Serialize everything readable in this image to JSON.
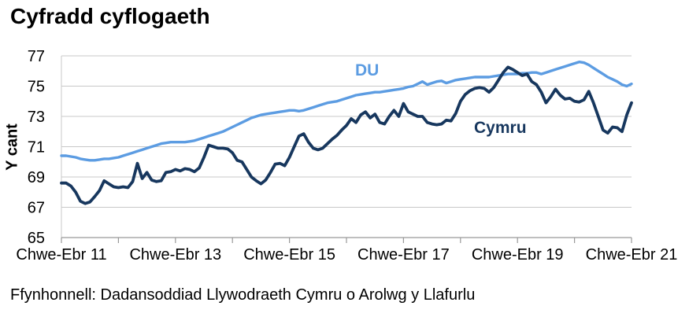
{
  "chart_data": {
    "type": "line",
    "title": "Cyfradd cyflogaeth",
    "ylabel": "Y cant",
    "source": "Ffynhonnell: Dadansoddiad Llywodraeth Cymru o Arolwg y Llafurlu",
    "ylim": [
      65,
      77
    ],
    "y_ticks": [
      65,
      67,
      69,
      71,
      73,
      75,
      77
    ],
    "n_months": 120,
    "x_tick_months": [
      0,
      12,
      24,
      36,
      48,
      60,
      72,
      84,
      96,
      108,
      120
    ],
    "x_labels": [
      {
        "text": "Chwe-Ebr 11",
        "month": 0
      },
      {
        "text": "Chwe-Ebr 13",
        "month": 24
      },
      {
        "text": "Chwe-Ebr 15",
        "month": 48
      },
      {
        "text": "Chwe-Ebr 17",
        "month": 72
      },
      {
        "text": "Chwe-Ebr 19",
        "month": 96
      },
      {
        "text": "Chwe-Ebr 21",
        "month": 120
      }
    ],
    "grid_color": "#C8C8C8",
    "axis_color": "#999999",
    "text_color": "#000000",
    "legend_position": "inline-labels",
    "grid": "horizontal-only",
    "series": [
      {
        "name": "DU",
        "color": "#5C9CE2",
        "stroke_width": 3.4,
        "values": [
          70.4,
          70.4,
          70.35,
          70.3,
          70.2,
          70.15,
          70.1,
          70.1,
          70.15,
          70.2,
          70.2,
          70.25,
          70.3,
          70.4,
          70.5,
          70.6,
          70.7,
          70.8,
          70.9,
          71.0,
          71.1,
          71.2,
          71.25,
          71.3,
          71.3,
          71.3,
          71.3,
          71.35,
          71.4,
          71.5,
          71.6,
          71.7,
          71.8,
          71.9,
          72.0,
          72.15,
          72.3,
          72.45,
          72.6,
          72.75,
          72.9,
          73.0,
          73.1,
          73.15,
          73.2,
          73.25,
          73.3,
          73.35,
          73.4,
          73.4,
          73.35,
          73.4,
          73.5,
          73.6,
          73.7,
          73.8,
          73.9,
          73.95,
          74.0,
          74.1,
          74.2,
          74.3,
          74.4,
          74.45,
          74.5,
          74.55,
          74.6,
          74.6,
          74.65,
          74.7,
          74.75,
          74.8,
          74.85,
          74.95,
          75.0,
          75.15,
          75.3,
          75.1,
          75.2,
          75.3,
          75.35,
          75.2,
          75.3,
          75.4,
          75.45,
          75.5,
          75.55,
          75.6,
          75.6,
          75.6,
          75.6,
          75.65,
          75.7,
          75.75,
          75.8,
          75.8,
          75.8,
          75.85,
          75.85,
          75.9,
          75.9,
          75.8,
          75.9,
          76.0,
          76.1,
          76.2,
          76.3,
          76.4,
          76.5,
          76.6,
          76.55,
          76.4,
          76.2,
          76.0,
          75.8,
          75.6,
          75.45,
          75.3,
          75.1,
          75.0,
          75.15
        ]
      },
      {
        "name": "Cymru",
        "color": "#17375E",
        "stroke_width": 3.8,
        "values": [
          68.6,
          68.6,
          68.4,
          68.0,
          67.4,
          67.25,
          67.35,
          67.7,
          68.1,
          68.75,
          68.55,
          68.35,
          68.3,
          68.35,
          68.3,
          68.7,
          69.9,
          68.9,
          69.3,
          68.8,
          68.7,
          68.75,
          69.3,
          69.35,
          69.5,
          69.4,
          69.55,
          69.5,
          69.35,
          69.6,
          70.3,
          71.1,
          71.0,
          70.9,
          70.9,
          70.85,
          70.6,
          70.1,
          70.0,
          69.5,
          69.0,
          68.75,
          68.55,
          68.8,
          69.3,
          69.85,
          69.9,
          69.75,
          70.3,
          71.0,
          71.7,
          71.85,
          71.3,
          70.9,
          70.8,
          70.9,
          71.2,
          71.5,
          71.75,
          72.1,
          72.4,
          72.85,
          72.6,
          73.1,
          73.3,
          72.9,
          73.15,
          72.6,
          72.5,
          73.0,
          73.4,
          73.0,
          73.85,
          73.3,
          73.15,
          73.0,
          73.0,
          72.6,
          72.5,
          72.45,
          72.5,
          72.75,
          72.7,
          73.2,
          74.0,
          74.45,
          74.7,
          74.85,
          74.9,
          74.85,
          74.6,
          74.9,
          75.4,
          75.9,
          76.25,
          76.1,
          75.9,
          75.7,
          75.8,
          75.3,
          75.1,
          74.6,
          73.9,
          74.3,
          74.8,
          74.4,
          74.15,
          74.2,
          74.0,
          73.95,
          74.1,
          74.65,
          73.9,
          73.0,
          72.1,
          71.9,
          72.3,
          72.25,
          72.0,
          73.1,
          73.9
        ]
      }
    ]
  }
}
